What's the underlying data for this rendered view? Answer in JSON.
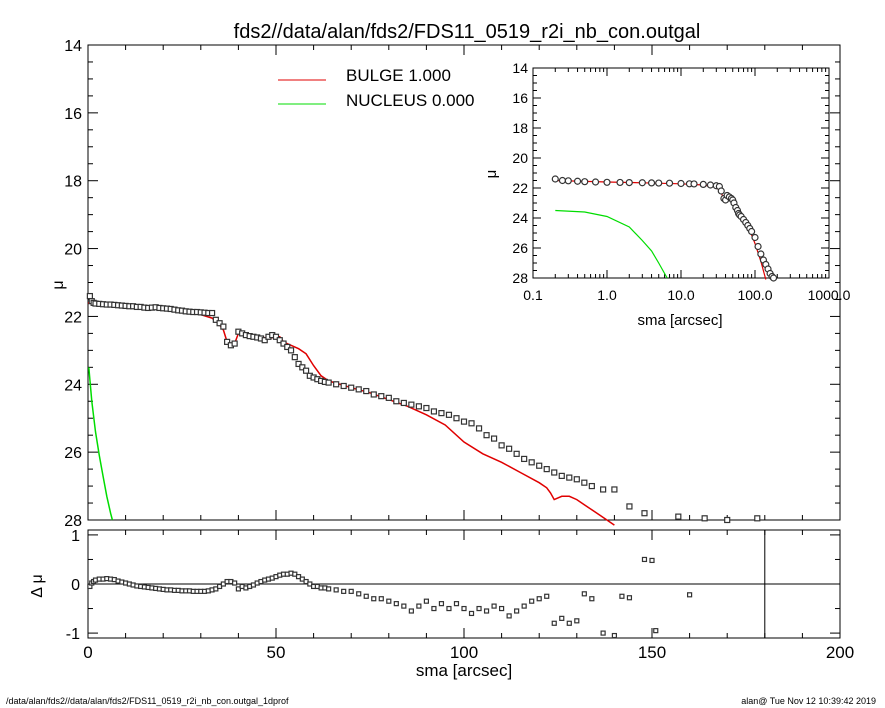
{
  "title": "fds2//data/alan/fds2/FDS11_0519_r2i_nb_con.outgal",
  "footer_left": "/data/alan/fds2//data/alan/fds2/FDS11_0519_r2i_nb_con.outgal_1dprof",
  "footer_right": "alan@  Tue Nov 12 10:39:42 2019",
  "colors": {
    "bulge": "#e00000",
    "nucleus": "#00dd00",
    "points": "#333333",
    "axis": "#000000"
  },
  "chart_data": [
    {
      "id": "main",
      "type": "scatter",
      "ylabel": "μ",
      "xlim": [
        0,
        200
      ],
      "ylim": [
        28,
        14
      ],
      "yticks": [
        "14",
        "16",
        "18",
        "20",
        "22",
        "24",
        "26",
        "28"
      ],
      "legend": {
        "placement": "top-center",
        "entries": [
          {
            "name": "BULGE  1.000",
            "color": "#e00000"
          },
          {
            "name": "NUCLEUS  0.000",
            "color": "#00dd00"
          }
        ]
      },
      "points": {
        "x": [
          0.5,
          1,
          1.5,
          2,
          3,
          4,
          5,
          6,
          7,
          8,
          9,
          10,
          11,
          12,
          13,
          14,
          15,
          16,
          17,
          18,
          19,
          20,
          21,
          22,
          23,
          24,
          25,
          26,
          27,
          28,
          29,
          30,
          31,
          32,
          33,
          34,
          35,
          36,
          37,
          38,
          39,
          40,
          41,
          42,
          43,
          44,
          45,
          46,
          47,
          48,
          49,
          50,
          51,
          52,
          53,
          54,
          55,
          56,
          57,
          58,
          59,
          60,
          61,
          62,
          63,
          64,
          66,
          68,
          70,
          72,
          74,
          76,
          78,
          80,
          82,
          84,
          86,
          88,
          90,
          92,
          94,
          96,
          98,
          100,
          102,
          104,
          106,
          108,
          110,
          112,
          114,
          116,
          118,
          120,
          122,
          124,
          126,
          128,
          130,
          132,
          134,
          137,
          140,
          144,
          148,
          157,
          164,
          170,
          178
        ],
        "y": [
          21.4,
          21.55,
          21.6,
          21.62,
          21.63,
          21.64,
          21.65,
          21.65,
          21.66,
          21.67,
          21.68,
          21.69,
          21.7,
          21.7,
          21.72,
          21.72,
          21.74,
          21.75,
          21.74,
          21.73,
          21.75,
          21.76,
          21.77,
          21.78,
          21.8,
          21.82,
          21.83,
          21.85,
          21.86,
          21.87,
          21.87,
          21.88,
          21.89,
          21.9,
          21.9,
          22.1,
          22.2,
          22.3,
          22.75,
          22.85,
          22.8,
          22.45,
          22.5,
          22.55,
          22.58,
          22.6,
          22.62,
          22.65,
          22.7,
          22.6,
          22.55,
          22.6,
          22.7,
          22.8,
          22.9,
          23.0,
          23.2,
          23.4,
          23.5,
          23.6,
          23.75,
          23.8,
          23.85,
          23.9,
          23.93,
          23.95,
          24.0,
          24.05,
          24.1,
          24.15,
          24.2,
          24.3,
          24.35,
          24.4,
          24.5,
          24.55,
          24.6,
          24.65,
          24.7,
          24.8,
          24.85,
          24.9,
          25.0,
          25.1,
          25.15,
          25.3,
          25.5,
          25.6,
          25.8,
          25.9,
          26.05,
          26.2,
          26.3,
          26.4,
          26.5,
          26.6,
          26.7,
          26.75,
          26.8,
          26.9,
          27.0,
          27.1,
          27.1,
          27.6,
          27.8,
          27.9,
          27.95,
          28.0,
          27.95
        ]
      },
      "bulge": {
        "x": [
          0,
          5,
          10,
          15,
          20,
          25,
          30,
          33,
          34,
          35,
          36,
          37,
          38,
          39,
          40,
          41,
          42,
          44,
          46,
          48,
          50,
          51,
          52,
          54,
          56,
          58,
          60,
          62,
          64,
          70,
          75,
          80,
          85,
          90,
          95,
          100,
          105,
          110,
          115,
          120,
          122,
          123,
          124,
          126,
          128,
          130,
          132,
          134,
          136,
          138,
          140
        ],
        "y": [
          21.6,
          21.68,
          21.72,
          21.75,
          21.8,
          21.85,
          21.95,
          22.05,
          22.15,
          22.25,
          22.4,
          22.75,
          22.8,
          22.8,
          22.5,
          22.45,
          22.5,
          22.55,
          22.6,
          22.65,
          22.6,
          22.6,
          22.75,
          22.85,
          22.95,
          23.1,
          23.45,
          23.75,
          23.9,
          24.1,
          24.25,
          24.45,
          24.65,
          24.9,
          25.2,
          25.7,
          26.05,
          26.3,
          26.6,
          26.9,
          27.05,
          27.2,
          27.4,
          27.3,
          27.3,
          27.4,
          27.55,
          27.7,
          27.85,
          28.0,
          28.15
        ]
      },
      "nucleus": {
        "x": [
          0.2,
          1,
          2,
          3,
          4,
          5,
          6,
          6.5
        ],
        "y": [
          23.5,
          24.5,
          25.4,
          26.1,
          26.7,
          27.3,
          27.8,
          28.0
        ]
      }
    },
    {
      "id": "inset",
      "type": "scatter",
      "xscale": "log",
      "ylabel": "μ",
      "xlabel": "sma [arcsec]",
      "xlim": [
        0.1,
        1000
      ],
      "ylim": [
        28,
        14
      ],
      "xticks": [
        "0.1",
        "1.0",
        "10.0",
        "100.0",
        "1000.0"
      ],
      "yticks": [
        "14",
        "16",
        "18",
        "20",
        "22",
        "24",
        "26",
        "28"
      ],
      "points": {
        "x": [
          0.2,
          0.25,
          0.3,
          0.4,
          0.5,
          0.7,
          1,
          1.5,
          2,
          3,
          4,
          5,
          7,
          10,
          13,
          15,
          20,
          25,
          30,
          33,
          35,
          38,
          40,
          42,
          45,
          48,
          50,
          52,
          55,
          58,
          60,
          62,
          65,
          70,
          75,
          80,
          85,
          90,
          100,
          110,
          120,
          130,
          140,
          150,
          160,
          170,
          178
        ],
        "y": [
          21.4,
          21.5,
          21.52,
          21.55,
          21.58,
          21.6,
          21.62,
          21.63,
          21.64,
          21.65,
          21.66,
          21.67,
          21.68,
          21.7,
          21.72,
          21.73,
          21.76,
          21.8,
          21.85,
          21.9,
          22.2,
          22.7,
          22.8,
          22.5,
          22.6,
          22.7,
          22.8,
          23.0,
          23.3,
          23.5,
          23.7,
          23.8,
          23.9,
          24.1,
          24.3,
          24.5,
          24.7,
          24.9,
          25.3,
          25.9,
          26.4,
          26.8,
          27.1,
          27.4,
          27.7,
          27.9,
          28.0
        ]
      },
      "bulge": {
        "x": [
          0.2,
          1,
          3,
          10,
          20,
          30,
          35,
          38,
          40,
          45,
          50,
          60,
          70,
          80,
          100,
          120,
          140
        ],
        "y": [
          21.5,
          21.6,
          21.65,
          21.72,
          21.8,
          21.95,
          22.3,
          22.8,
          22.6,
          22.7,
          22.8,
          23.5,
          24.1,
          24.5,
          25.7,
          26.9,
          28.1
        ]
      },
      "nucleus": {
        "x": [
          0.2,
          0.5,
          1,
          2,
          3,
          4,
          5,
          6,
          6.5
        ],
        "y": [
          23.5,
          23.6,
          23.9,
          24.6,
          25.5,
          26.2,
          27.0,
          27.7,
          28.0
        ]
      }
    },
    {
      "id": "residual",
      "type": "scatter",
      "ylabel": "Δ μ",
      "xlabel": "sma [arcsec]",
      "xlim": [
        0,
        200
      ],
      "ylim": [
        -1.1,
        1.1
      ],
      "xticks": [
        "0",
        "50",
        "100",
        "150",
        "200"
      ],
      "yticks": [
        "1",
        "0",
        "-1"
      ],
      "vline_x": 180,
      "points": {
        "x": [
          0.5,
          1,
          1.5,
          2,
          3,
          4,
          5,
          6,
          7,
          8,
          9,
          10,
          11,
          12,
          13,
          14,
          15,
          16,
          17,
          18,
          19,
          20,
          21,
          22,
          23,
          24,
          25,
          26,
          27,
          28,
          29,
          30,
          31,
          32,
          33,
          34,
          35,
          36,
          37,
          38,
          39,
          40,
          41,
          42,
          43,
          44,
          45,
          46,
          47,
          48,
          49,
          50,
          51,
          52,
          53,
          54,
          55,
          56,
          57,
          58,
          59,
          60,
          61,
          62,
          63,
          64,
          66,
          68,
          70,
          72,
          74,
          76,
          78,
          80,
          82,
          84,
          86,
          88,
          90,
          92,
          94,
          96,
          98,
          100,
          102,
          104,
          106,
          108,
          110,
          112,
          114,
          116,
          118,
          120,
          122,
          124,
          126,
          128,
          130,
          132,
          134,
          137,
          140,
          142,
          144,
          148,
          150,
          151,
          160
        ],
        "y": [
          -0.05,
          0.02,
          0.05,
          0.08,
          0.1,
          0.1,
          0.11,
          0.1,
          0.09,
          0.06,
          0.04,
          0.02,
          0.0,
          -0.02,
          -0.04,
          -0.05,
          -0.06,
          -0.07,
          -0.08,
          -0.09,
          -0.1,
          -0.11,
          -0.12,
          -0.12,
          -0.13,
          -0.13,
          -0.14,
          -0.14,
          -0.14,
          -0.15,
          -0.15,
          -0.15,
          -0.15,
          -0.14,
          -0.12,
          -0.1,
          -0.05,
          0.0,
          0.05,
          0.05,
          0.02,
          -0.1,
          -0.05,
          -0.08,
          -0.05,
          -0.02,
          0.02,
          0.05,
          0.08,
          0.1,
          0.12,
          0.15,
          0.18,
          0.2,
          0.2,
          0.22,
          0.2,
          0.15,
          0.1,
          0.05,
          0.0,
          -0.05,
          -0.05,
          -0.08,
          -0.08,
          -0.1,
          -0.12,
          -0.15,
          -0.15,
          -0.2,
          -0.25,
          -0.3,
          -0.3,
          -0.35,
          -0.4,
          -0.45,
          -0.55,
          -0.45,
          -0.35,
          -0.5,
          -0.4,
          -0.5,
          -0.4,
          -0.5,
          -0.6,
          -0.5,
          -0.55,
          -0.45,
          -0.5,
          -0.65,
          -0.55,
          -0.45,
          -0.35,
          -0.3,
          -0.25,
          -0.8,
          -0.7,
          -0.8,
          -0.75,
          -0.2,
          -0.3,
          -1.0,
          -1.05,
          -0.25,
          -0.28,
          0.5,
          0.48,
          -0.95,
          -0.22
        ]
      }
    }
  ]
}
